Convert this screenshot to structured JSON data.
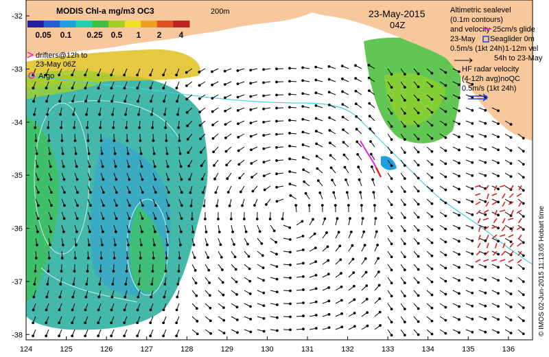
{
  "map": {
    "lon_ticks": [
      "124",
      "125",
      "126",
      "127",
      "128",
      "129",
      "130",
      "131",
      "132",
      "133",
      "134",
      "135",
      "136"
    ],
    "lat_ticks": [
      "-32",
      "-33",
      "-34",
      "-35",
      "-36",
      "-37",
      "-38"
    ],
    "lon_range": [
      124,
      136.6
    ],
    "lat_range": [
      -31.7,
      -38.1
    ]
  },
  "colorbar": {
    "title": "MODIS Chl-a mg/m3 OC3",
    "ticks": [
      "0.05",
      "0.1",
      "0.25",
      "0.5",
      "1",
      "2",
      "4"
    ],
    "colors": [
      "#2020a0",
      "#2060d0",
      "#20a0e0",
      "#20d0b0",
      "#40c040",
      "#a0d020",
      "#f0e020",
      "#f0a020",
      "#e05020",
      "#c02020"
    ]
  },
  "labels": {
    "date": "23-May-2015",
    "time": "04Z",
    "isobath": "200m",
    "drifters": "drifters@12h to",
    "drifters_date": "23-May 06Z",
    "argo": "Argo",
    "altimetry_1": "Altimetric sealevel",
    "altimetry_2": "(0.1m contours)",
    "altimetry_3": "and velocity",
    "altimetry_4": "23-May",
    "altimetry_5": "0.5m/s (1kt 24h)",
    "glider_1": "25cm/s glide",
    "glider_2": "Seaglider 0m",
    "glider_3": "1-12m vel",
    "glider_4": "54h to 23-May",
    "hf_1": "HF radar velocity",
    "hf_2": "(4-12h avg)noQC",
    "hf_3": "0.5m/s (1kt 24h)",
    "credit": "© IMOS 02-Jun-2015 11:13:05 Hobart time"
  },
  "colors": {
    "land": "#f7c89c",
    "shelf_contour": "#40d0e0",
    "arrow": "#000000",
    "hf_arrow": "#e02020",
    "drifter": "#e020e0",
    "argo": "#e020e0",
    "hf_legend": "#2040e0"
  }
}
